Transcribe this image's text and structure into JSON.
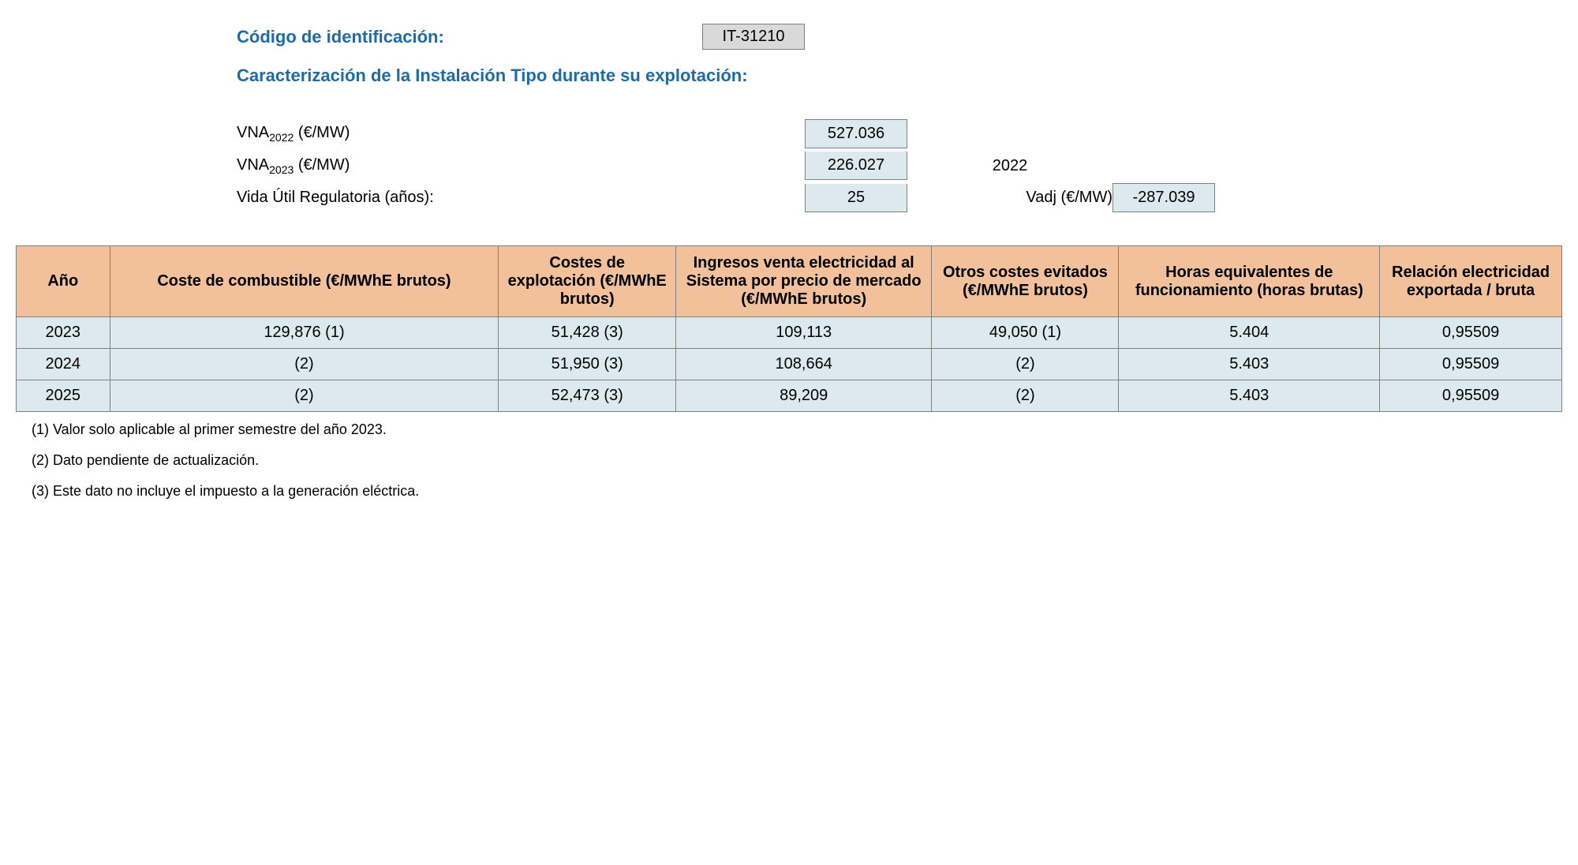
{
  "header": {
    "code_label": "Código de identificación:",
    "code_value": "IT-31210",
    "section_title": "Caracterización de la Instalación Tipo durante su explotación:"
  },
  "params": {
    "vna_2022_label": "VNA",
    "vna_2022_sub": "2022",
    "vna_2022_unit": " (€/MW)",
    "vna_2022_value": "527.036",
    "vna_2023_label": "VNA",
    "vna_2023_sub": "2023",
    "vna_2023_unit": " (€/MW)",
    "vna_2023_value": "226.027",
    "vida_util_label": "Vida Útil Regulatoria (años):",
    "vida_util_value": "25",
    "year_ref": "2022",
    "vadj_label": "Vadj (€/MW)",
    "vadj_value": "-287.039"
  },
  "table": {
    "headers": {
      "year": "Año",
      "fuel_cost": "Coste de combustible (€/MWhE brutos)",
      "exploit_cost": "Costes de explotación (€/MWhE brutos)",
      "income": "Ingresos venta electricidad al Sistema por precio de mercado (€/MWhE brutos)",
      "other_costs": "Otros costes evitados (€/MWhE brutos)",
      "hours": "Horas equivalentes de funcionamiento (horas brutas)",
      "ratio": "Relación electricidad exportada / bruta"
    },
    "rows": [
      {
        "year": "2023",
        "fuel_cost": "129,876 (1)",
        "exploit_cost": "51,428 (3)",
        "income": "109,113",
        "other_costs": "49,050 (1)",
        "hours": "5.404",
        "ratio": "0,95509"
      },
      {
        "year": "2024",
        "fuel_cost": "(2)",
        "exploit_cost": "51,950 (3)",
        "income": "108,664",
        "other_costs": "(2)",
        "hours": "5.403",
        "ratio": "0,95509"
      },
      {
        "year": "2025",
        "fuel_cost": "(2)",
        "exploit_cost": "52,473 (3)",
        "income": "89,209",
        "other_costs": "(2)",
        "hours": "5.403",
        "ratio": "0,95509"
      }
    ]
  },
  "footnotes": {
    "n1": "(1) Valor solo aplicable al primer semestre del año 2023.",
    "n2": "(2) Dato pendiente de actualización.",
    "n3": "(3) Este dato no incluye el impuesto a la generación eléctrica."
  },
  "colors": {
    "header_blue": "#1f6ba3",
    "th_bg": "#f2c19b",
    "td_bg": "#dce9ef",
    "code_bg": "#d9d9d9",
    "border": "#808080"
  }
}
